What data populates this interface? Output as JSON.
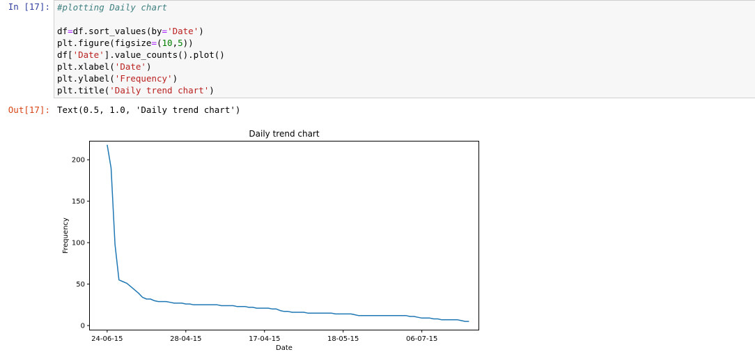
{
  "cell": {
    "in_prompt": "In [17]:",
    "out_prompt": "Out[17]:",
    "code_lines": [
      [
        {
          "t": "#plotting Daily chart",
          "c": "comment"
        }
      ],
      [
        {
          "t": "",
          "c": ""
        }
      ],
      [
        {
          "t": "df",
          "c": ""
        },
        {
          "t": "=",
          "c": "op"
        },
        {
          "t": "df.sort_values(by",
          "c": ""
        },
        {
          "t": "=",
          "c": "op"
        },
        {
          "t": "'Date'",
          "c": "str"
        },
        {
          "t": ")",
          "c": ""
        }
      ],
      [
        {
          "t": "plt.figure(figsize",
          "c": ""
        },
        {
          "t": "=",
          "c": "op"
        },
        {
          "t": "(",
          "c": ""
        },
        {
          "t": "10",
          "c": "num"
        },
        {
          "t": ",",
          "c": ""
        },
        {
          "t": "5",
          "c": "num"
        },
        {
          "t": "))",
          "c": ""
        }
      ],
      [
        {
          "t": "df[",
          "c": ""
        },
        {
          "t": "'Date'",
          "c": "str"
        },
        {
          "t": "].value_counts().plot()",
          "c": ""
        }
      ],
      [
        {
          "t": "plt.xlabel(",
          "c": ""
        },
        {
          "t": "'Date'",
          "c": "str"
        },
        {
          "t": ")",
          "c": ""
        }
      ],
      [
        {
          "t": "plt.ylabel(",
          "c": ""
        },
        {
          "t": "'Frequency'",
          "c": "str"
        },
        {
          "t": ")",
          "c": ""
        }
      ],
      [
        {
          "t": "plt.title(",
          "c": ""
        },
        {
          "t": "'Daily trend chart'",
          "c": "str"
        },
        {
          "t": ")",
          "c": ""
        }
      ]
    ],
    "output_text": "Text(0.5, 1.0, 'Daily trend chart')"
  },
  "chart_data": {
    "type": "line",
    "title": "Daily trend chart",
    "xlabel": "Date",
    "ylabel": "Frequency",
    "x_tick_labels": [
      "24-06-15",
      "28-04-15",
      "17-04-15",
      "18-05-15",
      "06-07-15"
    ],
    "x_tick_positions": [
      0,
      20,
      40,
      60,
      80
    ],
    "xlim": [
      -4.4,
      94.4
    ],
    "y_ticks": [
      0,
      50,
      100,
      150,
      200
    ],
    "ylim": [
      -5,
      222
    ],
    "line_color": "#1f77b4",
    "series": [
      {
        "values": [
          218,
          190,
          98,
          55,
          53,
          51,
          47,
          43,
          39,
          34,
          32,
          32,
          30,
          29,
          29,
          29,
          28,
          27,
          27,
          27,
          26,
          26,
          25,
          25,
          25,
          25,
          25,
          25,
          25,
          24,
          24,
          24,
          24,
          23,
          23,
          23,
          22,
          22,
          21,
          21,
          21,
          21,
          20,
          20,
          18,
          17,
          17,
          16,
          16,
          16,
          16,
          15,
          15,
          15,
          15,
          15,
          15,
          15,
          14,
          14,
          14,
          14,
          14,
          13,
          12,
          12,
          12,
          12,
          12,
          12,
          12,
          12,
          12,
          12,
          12,
          12,
          12,
          11,
          11,
          10,
          9,
          9,
          9,
          8,
          8,
          7,
          7,
          7,
          7,
          7,
          6,
          5,
          5
        ]
      }
    ]
  }
}
